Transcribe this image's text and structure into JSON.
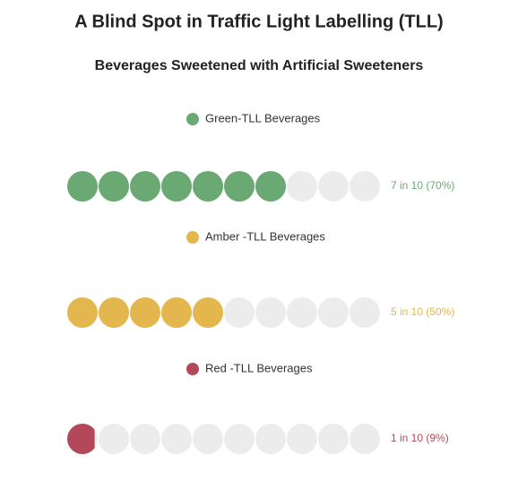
{
  "chart_data": {
    "type": "pictogram",
    "title": "A Blind Spot in Traffic Light Labelling (TLL)",
    "subtitle": "Beverages Sweetened with Artificial Sweeteners",
    "xlim": [
      0,
      100
    ],
    "series": [
      {
        "name": "Green-TLL Beverages",
        "color": "#6aa874",
        "values": [
          70
        ],
        "value_labels": [
          "7 in 10 (70%)"
        ]
      },
      {
        "name": "Amber -TLL Beverages",
        "color": "#e4b64e",
        "values": [
          50
        ],
        "value_labels": [
          "5 in 10 (50%)"
        ]
      },
      {
        "name": "Red -TLL Beverages",
        "color": "#b5475a",
        "values": [
          9
        ],
        "value_labels": [
          "1 in 10 (9%)"
        ]
      }
    ]
  }
}
